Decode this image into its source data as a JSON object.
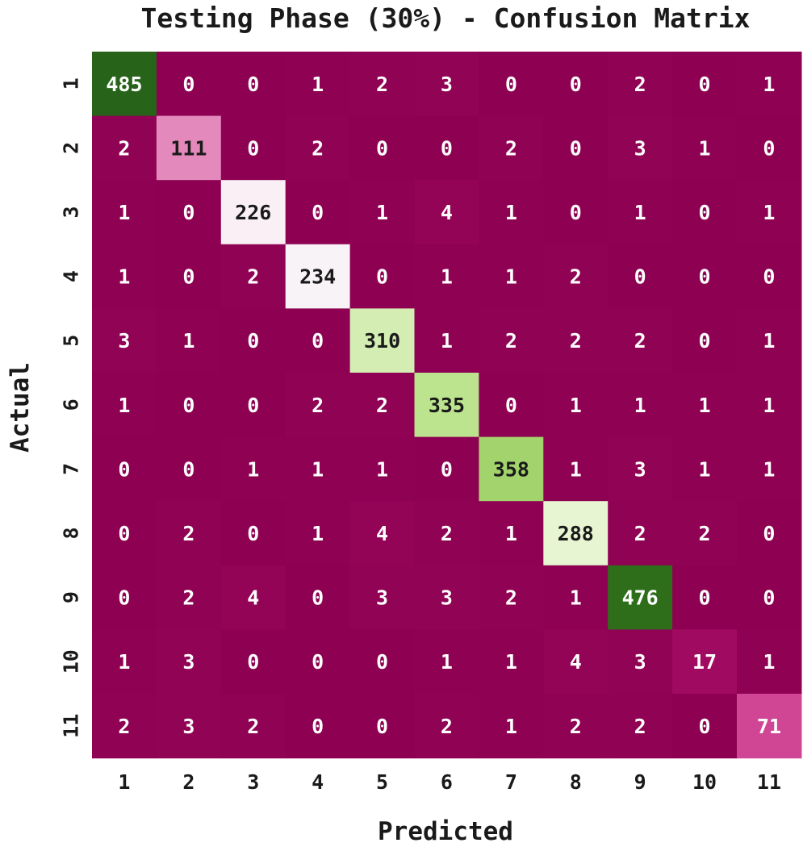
{
  "chart_data": {
    "type": "heatmap",
    "title": "Testing Phase (30%) - Confusion Matrix",
    "xlabel": "Predicted",
    "ylabel": "Actual",
    "x_categories": [
      "1",
      "2",
      "3",
      "4",
      "5",
      "6",
      "7",
      "8",
      "9",
      "10",
      "11"
    ],
    "y_categories": [
      "1",
      "2",
      "3",
      "4",
      "5",
      "6",
      "7",
      "8",
      "9",
      "10",
      "11"
    ],
    "values": [
      [
        485,
        0,
        0,
        1,
        2,
        3,
        0,
        0,
        2,
        0,
        1
      ],
      [
        2,
        111,
        0,
        2,
        0,
        0,
        2,
        0,
        3,
        1,
        0
      ],
      [
        1,
        0,
        226,
        0,
        1,
        4,
        1,
        0,
        1,
        0,
        1
      ],
      [
        1,
        0,
        2,
        234,
        0,
        1,
        1,
        2,
        0,
        0,
        0
      ],
      [
        3,
        1,
        0,
        0,
        310,
        1,
        2,
        2,
        2,
        0,
        1
      ],
      [
        1,
        0,
        0,
        2,
        2,
        335,
        0,
        1,
        1,
        1,
        1
      ],
      [
        0,
        0,
        1,
        1,
        1,
        0,
        358,
        1,
        3,
        1,
        1
      ],
      [
        0,
        2,
        0,
        1,
        4,
        2,
        1,
        288,
        2,
        2,
        0
      ],
      [
        0,
        2,
        4,
        0,
        3,
        3,
        2,
        1,
        476,
        0,
        0
      ],
      [
        1,
        3,
        0,
        0,
        0,
        1,
        1,
        4,
        3,
        17,
        1
      ],
      [
        2,
        3,
        2,
        0,
        0,
        2,
        1,
        2,
        2,
        0,
        71
      ]
    ],
    "vmin": 0,
    "vmax": 485,
    "colormap": "PiYG",
    "colorbar": false,
    "grid": false
  }
}
